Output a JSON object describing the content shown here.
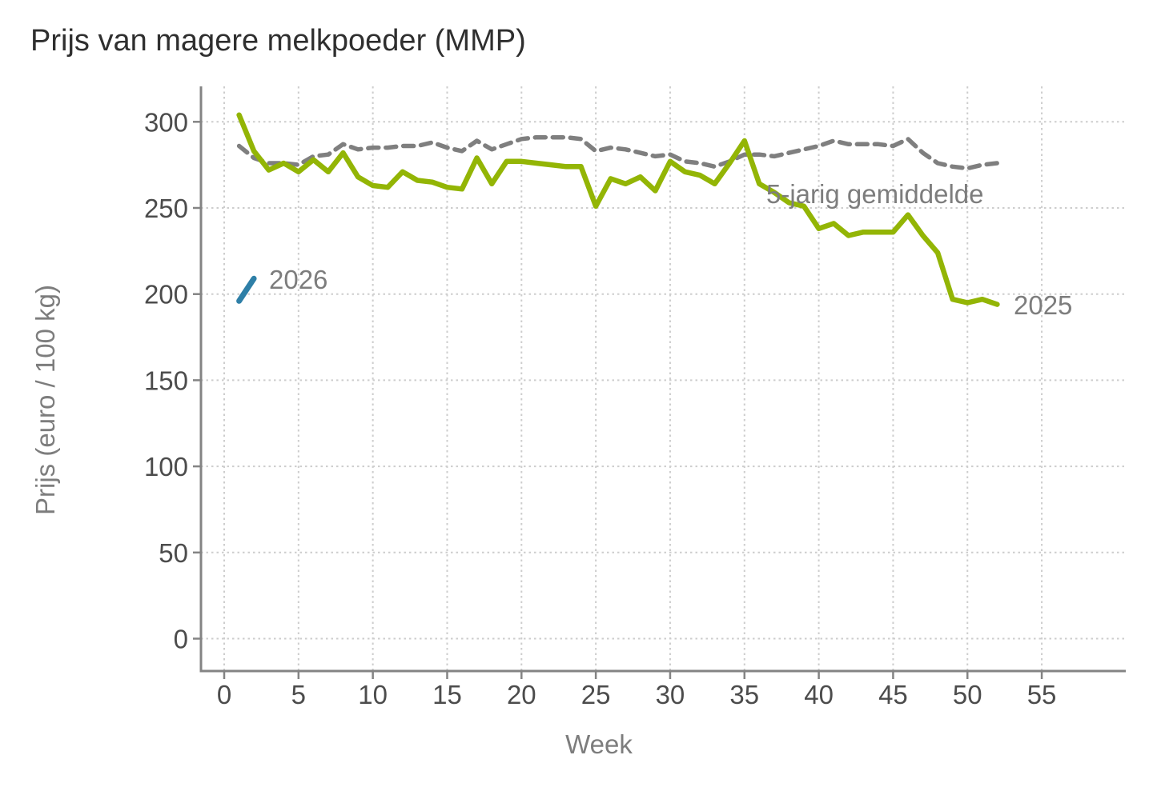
{
  "title": "Prijs van magere melkpoeder (MMP)",
  "x_axis": {
    "title": "Week",
    "ticks": [
      0,
      5,
      10,
      15,
      20,
      25,
      30,
      35,
      40,
      45,
      50,
      55
    ]
  },
  "y_axis": {
    "title": "Prijs (euro / 100 kg)",
    "ticks": [
      0,
      50,
      100,
      150,
      200,
      250,
      300
    ]
  },
  "colors": {
    "series_2025": "#93b505",
    "series_2026": "#2e7fa7",
    "series_avg": "#7f7f7f",
    "grid": "#cdcdcd",
    "axis": "#848484",
    "tick_label": "#4c4c4c",
    "title_text": "#2f2f2f",
    "annotation_text": "#7d7d7d"
  },
  "chart_data": {
    "type": "line",
    "title": "Prijs van magere melkpoeder (MMP)",
    "xlabel": "Week",
    "ylabel": "Prijs (euro / 100 kg)",
    "xlim": [
      0,
      60.5
    ],
    "ylim": [
      0,
      320
    ],
    "grid": true,
    "legend_position": "inline-annotations",
    "x_ticks": [
      0,
      5,
      10,
      15,
      20,
      25,
      30,
      35,
      40,
      45,
      50,
      55
    ],
    "y_ticks": [
      0,
      50,
      100,
      150,
      200,
      250,
      300
    ],
    "series": [
      {
        "name": "5-jarig gemiddelde",
        "color": "#7f7f7f",
        "style": "dashed",
        "x": [
          1,
          2,
          3,
          4,
          5,
          6,
          7,
          8,
          9,
          10,
          11,
          12,
          13,
          14,
          15,
          16,
          17,
          18,
          19,
          20,
          21,
          22,
          23,
          24,
          25,
          26,
          27,
          28,
          29,
          30,
          31,
          32,
          33,
          34,
          35,
          36,
          37,
          38,
          39,
          40,
          41,
          42,
          43,
          44,
          45,
          46,
          47,
          48,
          49,
          50,
          51,
          52
        ],
        "values": [
          286,
          279,
          276,
          276,
          275,
          280,
          281,
          287,
          284,
          285,
          285,
          286,
          286,
          288,
          285,
          283,
          289,
          284,
          287,
          290,
          291,
          291,
          291,
          290,
          283,
          285,
          284,
          282,
          280,
          281,
          277,
          276,
          274,
          277,
          281,
          281,
          280,
          282,
          284,
          286,
          289,
          287,
          287,
          287,
          286,
          290,
          282,
          276,
          274,
          273,
          275,
          276
        ]
      },
      {
        "name": "2025",
        "color": "#93b505",
        "style": "solid",
        "x": [
          1,
          2,
          3,
          4,
          5,
          6,
          7,
          8,
          9,
          10,
          11,
          12,
          13,
          14,
          15,
          16,
          17,
          18,
          19,
          20,
          21,
          22,
          23,
          24,
          25,
          26,
          27,
          28,
          29,
          30,
          31,
          32,
          33,
          34,
          35,
          36,
          37,
          38,
          39,
          40,
          41,
          42,
          43,
          44,
          45,
          46,
          47,
          48,
          49,
          50,
          51,
          52
        ],
        "values": [
          304,
          283,
          272,
          276,
          271,
          278,
          271,
          282,
          268,
          263,
          262,
          271,
          266,
          265,
          262,
          261,
          279,
          264,
          277,
          277,
          276,
          275,
          274,
          274,
          251,
          267,
          264,
          268,
          260,
          277,
          271,
          269,
          264,
          276,
          289,
          264,
          259,
          253,
          251,
          238,
          241,
          234,
          236,
          236,
          236,
          246,
          234,
          224,
          197,
          195,
          197,
          194
        ]
      },
      {
        "name": "2026",
        "color": "#2e7fa7",
        "style": "solid",
        "x": [
          1,
          2
        ],
        "values": [
          196,
          209
        ]
      }
    ]
  }
}
